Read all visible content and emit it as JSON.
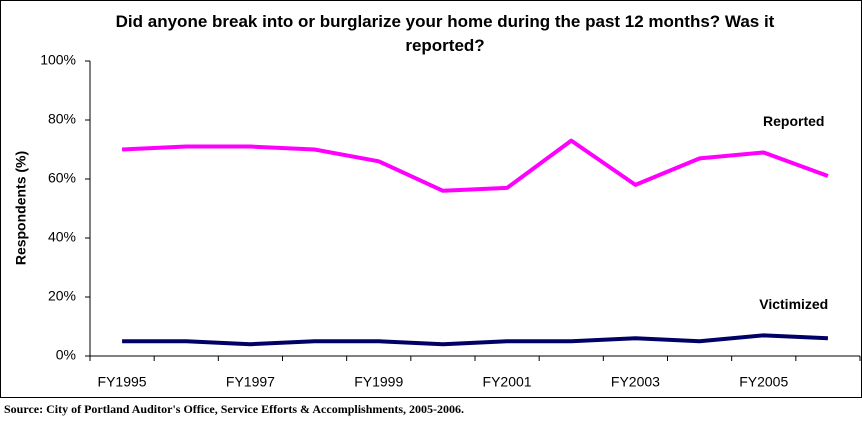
{
  "chart_data": {
    "type": "line",
    "title": "Did anyone break into or burglarize your home during the past 12 months? Was it reported?",
    "y_label": "Respondents (%)",
    "source": "Source: City of Portland Auditor's Office, Service Efforts & Accomplishments, 2005-2006.",
    "categories": [
      "FY1995",
      null,
      "FY1997",
      null,
      "FY1999",
      null,
      "FY2001",
      null,
      "FY2003",
      null,
      "FY2005",
      null
    ],
    "series": [
      {
        "name": "Reported",
        "color": "#ff00ff",
        "values": [
          70,
          71,
          71,
          70,
          66,
          56,
          57,
          73,
          58,
          67,
          69,
          61
        ]
      },
      {
        "name": "Victimized",
        "color": "#000066",
        "values": [
          5,
          5,
          4,
          5,
          5,
          4,
          5,
          5,
          6,
          5,
          7,
          6
        ]
      }
    ],
    "ylim": [
      0,
      100
    ],
    "yticks": [
      {
        "value": 0,
        "label": "0%"
      },
      {
        "value": 20,
        "label": "20%"
      },
      {
        "value": 40,
        "label": "40%"
      },
      {
        "value": 60,
        "label": "60%"
      },
      {
        "value": 80,
        "label": "80%"
      },
      {
        "value": 100,
        "label": "100%"
      }
    ],
    "grid": false
  }
}
